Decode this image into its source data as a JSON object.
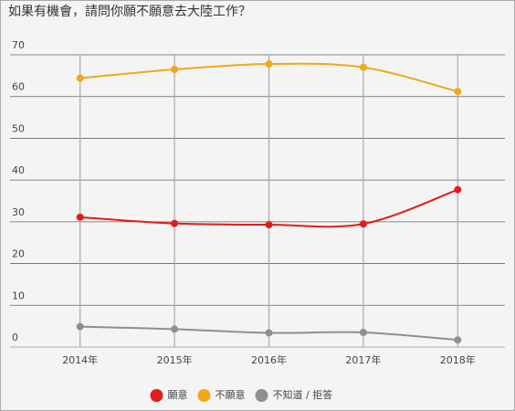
{
  "chart_data": {
    "type": "line",
    "title": "如果有機會，請問你願不願意去大陸工作？",
    "categories": [
      "2014年",
      "2015年",
      "2016年",
      "2017年",
      "2018年"
    ],
    "series": [
      {
        "name": "願意",
        "color": "#e31b1b",
        "values": [
          31.1,
          29.6,
          29.3,
          29.5,
          37.7
        ]
      },
      {
        "name": "不願意",
        "color": "#f0a818",
        "values": [
          64.4,
          66.5,
          67.8,
          67.0,
          61.2
        ]
      },
      {
        "name": "不知道 / 拒答",
        "color": "#8f8f8f",
        "values": [
          4.9,
          4.3,
          3.4,
          3.5,
          1.7
        ]
      }
    ],
    "ylim": [
      0,
      70
    ],
    "yticks": [
      0,
      10,
      20,
      30,
      40,
      50,
      60,
      70
    ],
    "grid": true
  }
}
